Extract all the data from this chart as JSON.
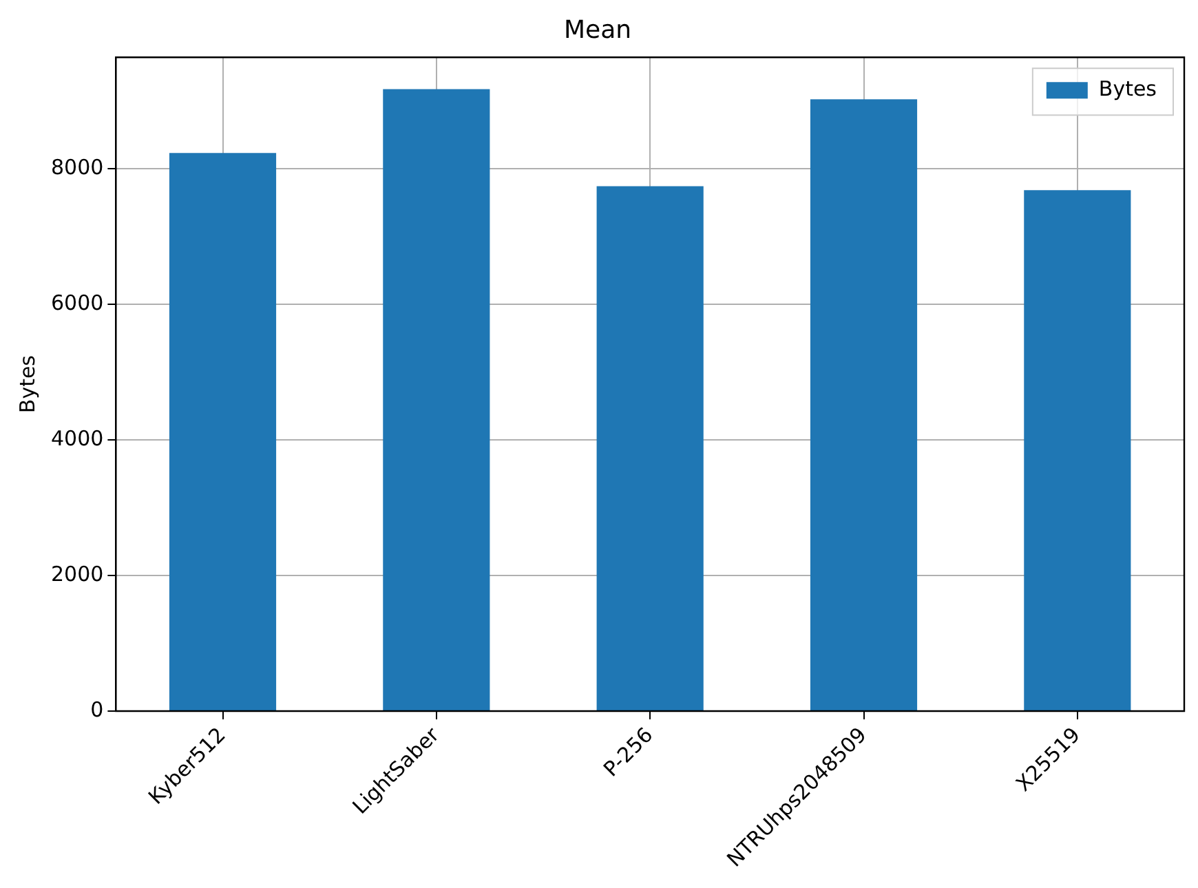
{
  "chart_data": {
    "type": "bar",
    "title": "Mean",
    "ylabel": "Bytes",
    "categories": [
      "Kyber512",
      "LightSaber",
      "P-256",
      "NTRUhps2048509",
      "X25519"
    ],
    "series": [
      {
        "name": "Bytes",
        "color": "#1f77b4",
        "values": [
          8230,
          9170,
          7740,
          9020,
          7680
        ]
      }
    ],
    "ylim": [
      0,
      9640
    ],
    "yticks": [
      0,
      2000,
      4000,
      6000,
      8000
    ],
    "grid": true,
    "legend": "top right"
  }
}
